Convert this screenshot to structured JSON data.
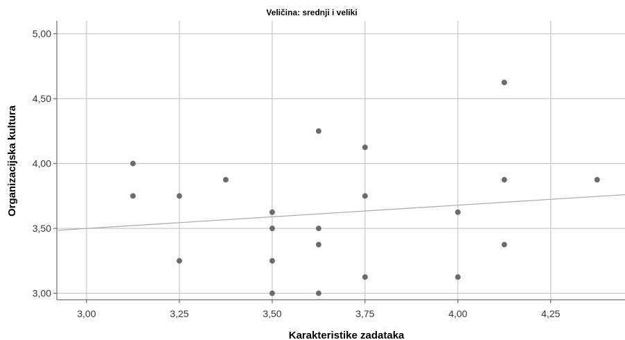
{
  "chart_data": {
    "type": "scatter",
    "title": "Veličina: srednji i veliki",
    "xlabel": "Karakteristike zadataka",
    "ylabel": "Organizacijska kultura",
    "xlim": [
      2.92,
      4.45
    ],
    "ylim": [
      2.95,
      5.1
    ],
    "xticks": [
      3.0,
      3.25,
      3.5,
      3.75,
      4.0,
      4.25
    ],
    "xtick_labels": [
      "3,00",
      "3,25",
      "3,50",
      "3,75",
      "4,00",
      "4,25"
    ],
    "yticks": [
      3.0,
      3.5,
      4.0,
      4.5,
      5.0
    ],
    "ytick_labels": [
      "3,00",
      "3,50",
      "4,00",
      "4,50",
      "5,00"
    ],
    "grid": true,
    "points": [
      {
        "x": 3.125,
        "y": 4.0
      },
      {
        "x": 3.125,
        "y": 3.75
      },
      {
        "x": 3.25,
        "y": 3.75
      },
      {
        "x": 3.25,
        "y": 3.25
      },
      {
        "x": 3.375,
        "y": 3.875
      },
      {
        "x": 3.5,
        "y": 3.625
      },
      {
        "x": 3.5,
        "y": 3.5
      },
      {
        "x": 3.5,
        "y": 3.25
      },
      {
        "x": 3.5,
        "y": 3.0
      },
      {
        "x": 3.625,
        "y": 4.25
      },
      {
        "x": 3.625,
        "y": 3.5
      },
      {
        "x": 3.625,
        "y": 3.375
      },
      {
        "x": 3.625,
        "y": 3.0
      },
      {
        "x": 3.75,
        "y": 4.125
      },
      {
        "x": 3.75,
        "y": 3.75
      },
      {
        "x": 3.75,
        "y": 3.125
      },
      {
        "x": 4.0,
        "y": 3.625
      },
      {
        "x": 4.0,
        "y": 3.125
      },
      {
        "x": 4.125,
        "y": 4.625
      },
      {
        "x": 4.125,
        "y": 3.875
      },
      {
        "x": 4.125,
        "y": 3.375
      },
      {
        "x": 4.375,
        "y": 3.875
      }
    ],
    "fit_line": {
      "x": [
        2.92,
        4.45
      ],
      "y": [
        3.485,
        3.76
      ]
    },
    "colors": {
      "point": "#6b6b6b",
      "grid": "#bdbdbd",
      "fit_line": "#a8a8a8",
      "axis": "#4d4d4d"
    }
  }
}
